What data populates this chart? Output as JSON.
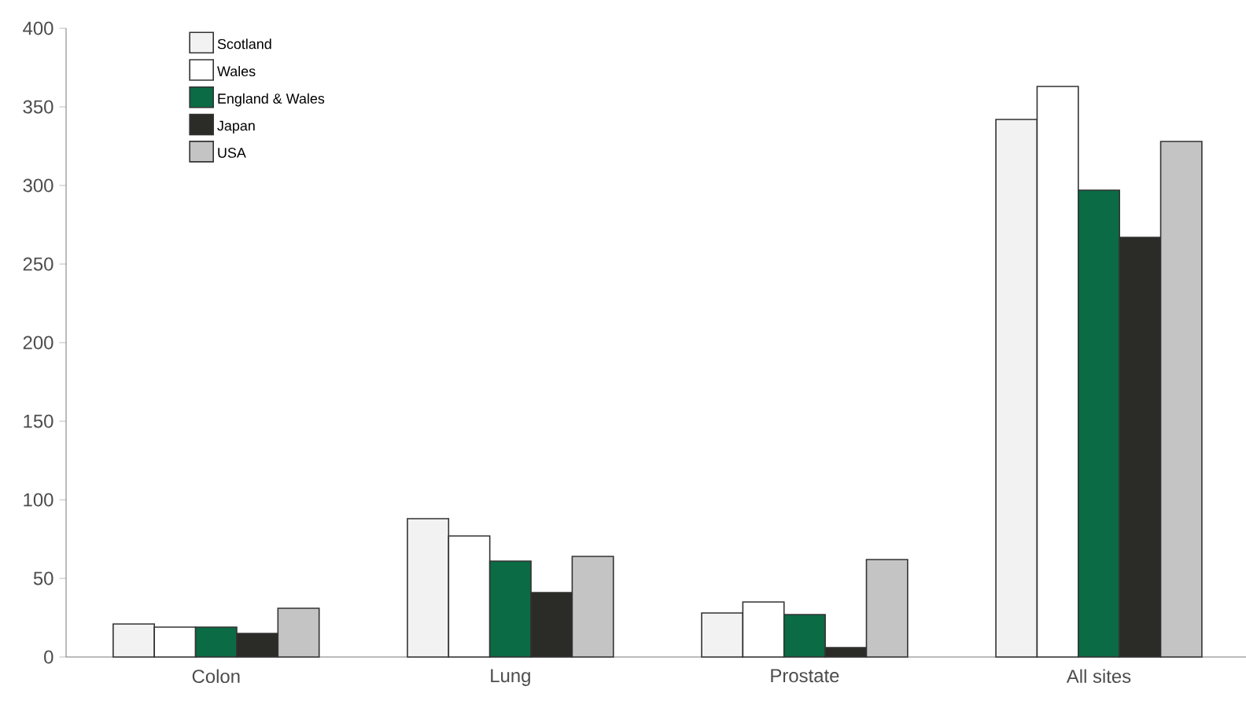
{
  "chart_data": {
    "type": "bar",
    "categories": [
      "Colon",
      "Lung",
      "Prostate",
      "All sites"
    ],
    "series": [
      {
        "name": "Scotland",
        "color": "#f2f2f2",
        "values": [
          21,
          88,
          28,
          342
        ]
      },
      {
        "name": "Wales",
        "color": "#ffffff",
        "values": [
          19,
          77,
          35,
          363
        ]
      },
      {
        "name": "England & Wales",
        "color": "#0a6b45",
        "values": [
          19,
          61,
          27,
          297
        ]
      },
      {
        "name": "Japan",
        "color": "#2b2b28",
        "values": [
          15,
          41,
          6,
          267
        ]
      },
      {
        "name": "USA",
        "color": "#c4c4c4",
        "values": [
          31,
          64,
          62,
          328
        ]
      }
    ],
    "ylim": [
      0,
      400
    ],
    "yticks": [
      0,
      50,
      100,
      150,
      200,
      250,
      300,
      350,
      400
    ],
    "legend": "top left"
  }
}
